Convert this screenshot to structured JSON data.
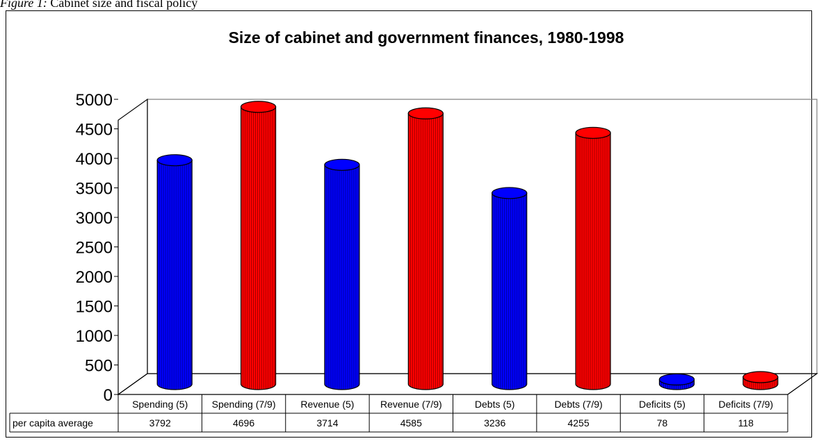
{
  "caption": {
    "figure_label": "Figure 1:",
    "text": "Cabinet size and fiscal policy"
  },
  "chart_data": {
    "type": "bar",
    "style": "3d-cylinder",
    "title": "Size of cabinet and government finances, 1980-1998",
    "xlabel": "",
    "ylabel": "",
    "ylim": [
      0,
      5000
    ],
    "yticks": [
      0,
      500,
      1000,
      1500,
      2000,
      2500,
      3000,
      3500,
      4000,
      4500,
      5000
    ],
    "grid": false,
    "categories": [
      "Spending (5)",
      "Spending (7/9)",
      "Revenue (5)",
      "Revenue (7/9)",
      "Debts (5)",
      "Debts (7/9)",
      "Deficits (5)",
      "Deficits (7/9)"
    ],
    "series": [
      {
        "name": "per capita average",
        "values": [
          3792,
          4696,
          3714,
          4585,
          3236,
          4255,
          78,
          118
        ]
      }
    ],
    "bar_colors": [
      "#0000ff",
      "#ff0000",
      "#0000ff",
      "#ff0000",
      "#0000ff",
      "#ff0000",
      "#0000ff",
      "#ff0000"
    ],
    "data_table": {
      "row_label": "per capita average",
      "values": [
        "3792",
        "4696",
        "3714",
        "4585",
        "3236",
        "4255",
        "78",
        "118"
      ]
    }
  }
}
